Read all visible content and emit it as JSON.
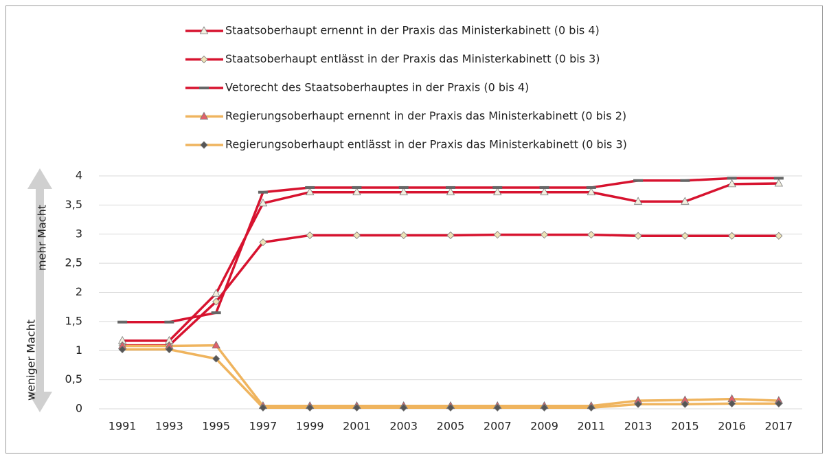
{
  "chart_data": {
    "type": "line",
    "ylabel_low": "weniger Macht",
    "ylabel_high": "mehr Macht",
    "categories": [
      "1991",
      "1993",
      "1995",
      "1997",
      "1999",
      "2001",
      "2003",
      "2005",
      "2007",
      "2009",
      "2011",
      "2013",
      "2015",
      "2016",
      "2017"
    ],
    "ylim": [
      0,
      4
    ],
    "yticks": [
      0,
      {
        "value": 0.5,
        "label": "0,5"
      },
      1,
      {
        "value": 1.5,
        "label": "1,5"
      },
      2,
      {
        "value": 2.5,
        "label": "2,5"
      },
      3,
      {
        "value": 3.5,
        "label": "3,5"
      },
      4
    ],
    "grid": true,
    "series": [
      {
        "name": "Staatsoberhaupt ernennt in der Praxis das Ministerkabinett (0 bis 4)",
        "color": "#d7132f",
        "marker": "triangle",
        "marker_color": "#f3efe0",
        "values": [
          1.17,
          1.17,
          1.98,
          3.53,
          3.72,
          3.72,
          3.72,
          3.72,
          3.72,
          3.72,
          3.72,
          3.56,
          3.56,
          3.86,
          3.87
        ]
      },
      {
        "name": "Staatsoberhaupt entlässt in der Praxis das Ministerkabinett (0 bis 3)",
        "color": "#d7132f",
        "marker": "diamond",
        "marker_color": "#efe3b8",
        "values": [
          1.09,
          1.09,
          1.84,
          2.86,
          2.98,
          2.98,
          2.98,
          2.98,
          2.99,
          2.99,
          2.99,
          2.97,
          2.97,
          2.97,
          2.97
        ]
      },
      {
        "name": "Vetorecht des Staatsoberhauptes in der Praxis (0 bis 4)",
        "color": "#d7132f",
        "marker": "dash",
        "marker_color": "#666666",
        "values": [
          1.49,
          1.49,
          1.65,
          3.72,
          3.8,
          3.8,
          3.8,
          3.8,
          3.8,
          3.8,
          3.8,
          3.92,
          3.92,
          3.96,
          3.96
        ]
      },
      {
        "name": "Regierungsoberhaupt ernennt in der Praxis das Ministerkabinett (0 bis 2)",
        "color": "#efb45e",
        "marker": "triangle",
        "marker_color": "#e0606a",
        "values": [
          1.08,
          1.08,
          1.09,
          0.05,
          0.05,
          0.05,
          0.05,
          0.05,
          0.05,
          0.05,
          0.05,
          0.14,
          0.15,
          0.17,
          0.14
        ]
      },
      {
        "name": "Regierungsoberhaupt entlässt in der Praxis das Ministerkabinett (0 bis 3)",
        "color": "#efb45e",
        "marker": "diamond",
        "marker_color": "#555555",
        "values": [
          1.02,
          1.02,
          0.86,
          0.02,
          0.02,
          0.02,
          0.02,
          0.02,
          0.02,
          0.02,
          0.02,
          0.08,
          0.08,
          0.09,
          0.09
        ]
      }
    ]
  }
}
